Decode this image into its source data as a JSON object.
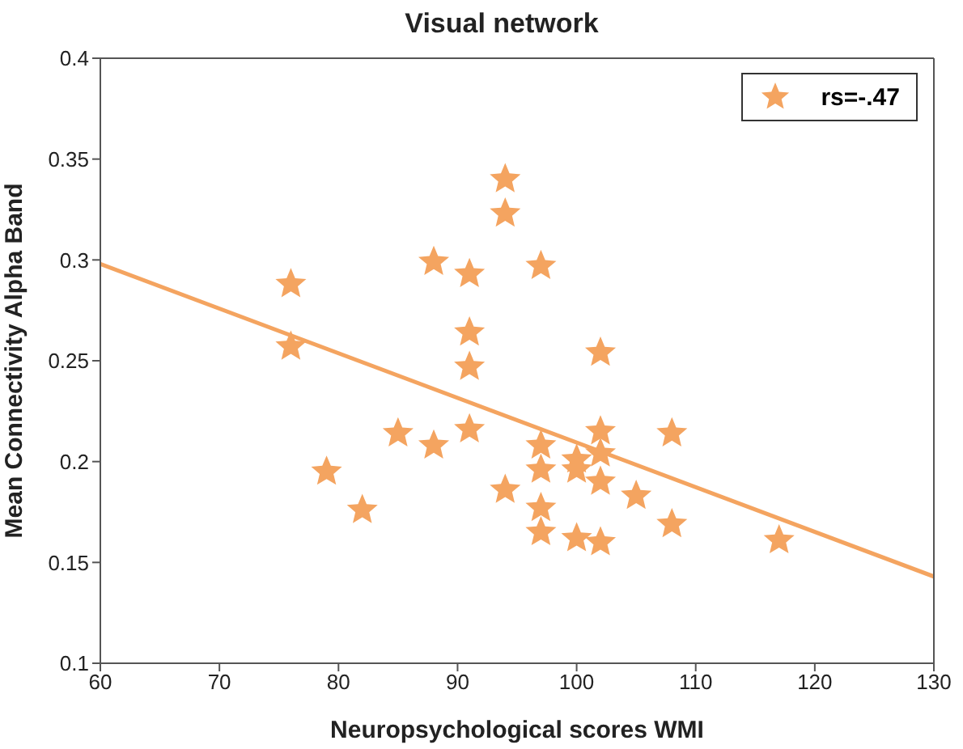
{
  "chart_data": {
    "type": "scatter",
    "title": "Visual network",
    "xlabel": "Neuropsychological scores WMI",
    "ylabel": "Mean Connectivity Alpha Band",
    "xlim": [
      60,
      130
    ],
    "xticks": [
      60,
      70,
      80,
      90,
      100,
      110,
      120,
      130
    ],
    "ylim": [
      0.1,
      0.4
    ],
    "yticks": [
      0.1,
      0.15,
      0.2,
      0.25,
      0.3,
      0.35,
      0.4
    ],
    "grid": false,
    "legend": "top right",
    "marker": "star",
    "series": [
      {
        "name": "rs=-.47",
        "color": "#f4a460",
        "x": [
          76,
          76,
          79,
          82,
          85,
          88,
          88,
          91,
          91,
          91,
          91,
          94,
          94,
          94,
          97,
          97,
          97,
          97,
          97,
          100,
          100,
          100,
          102,
          102,
          102,
          102,
          102,
          105,
          108,
          108,
          117
        ],
        "values": [
          0.288,
          0.257,
          0.195,
          0.176,
          0.214,
          0.299,
          0.208,
          0.293,
          0.264,
          0.247,
          0.216,
          0.34,
          0.323,
          0.186,
          0.297,
          0.208,
          0.196,
          0.177,
          0.165,
          0.201,
          0.196,
          0.162,
          0.254,
          0.215,
          0.204,
          0.19,
          0.16,
          0.183,
          0.214,
          0.169,
          0.161
        ]
      },
      {
        "color": "#f4a460",
        "type": "line",
        "marker": "none",
        "x": [
          60,
          130
        ],
        "values": [
          0.298,
          0.143
        ]
      }
    ]
  }
}
